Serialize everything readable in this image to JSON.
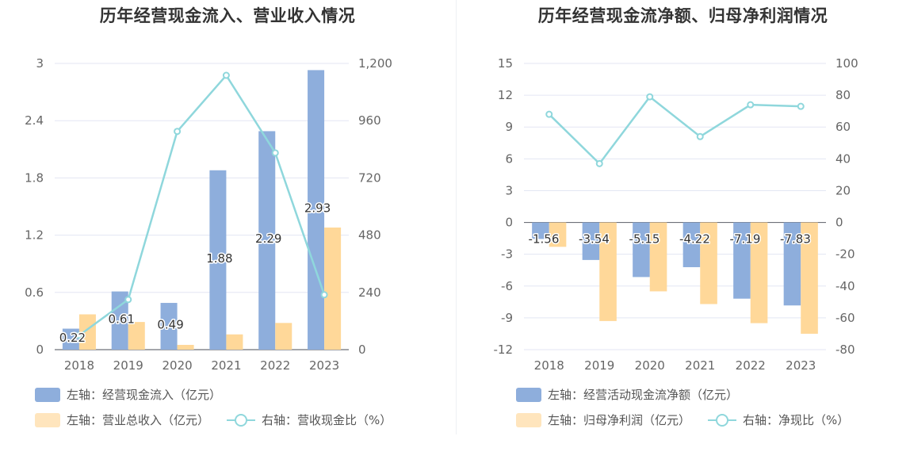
{
  "charts": {
    "left": {
      "title": "历年经营现金流入、营业收入情况",
      "legend": {
        "bar1": "左轴：经营现金流入（亿元）",
        "bar2": "左轴：营业总收入（亿元）",
        "line": "右轴：营收现金比（%）"
      }
    },
    "right": {
      "title": "历年经营现金流净额、归母净利润情况",
      "legend": {
        "bar1": "左轴：经营活动现金流净额（亿元）",
        "bar2": "左轴：归母净利润（亿元）",
        "line": "右轴：净现比（%）"
      }
    }
  },
  "colors": {
    "bar1": "#8eaedc",
    "bar2": "#ffd899",
    "line": "#8fd7dc"
  },
  "chart_data": [
    {
      "type": "bar",
      "title": "历年经营现金流入、营业收入情况",
      "categories": [
        "2018",
        "2019",
        "2020",
        "2021",
        "2022",
        "2023"
      ],
      "y_left": {
        "ticks": [
          "0",
          "0.6",
          "1.2",
          "1.8",
          "2.4",
          "3"
        ],
        "range": [
          0,
          3
        ]
      },
      "y_right": {
        "ticks": [
          "0",
          "240",
          "480",
          "720",
          "960",
          "1,200"
        ],
        "range": [
          0,
          1200
        ]
      },
      "series": [
        {
          "name": "左轴：经营现金流入（亿元）",
          "axis": "left",
          "type": "bar",
          "values": [
            0.22,
            0.61,
            0.49,
            1.88,
            2.29,
            2.93
          ],
          "labels": [
            "0.22",
            "0.61",
            "0.49",
            "1.88",
            "2.29",
            "2.93"
          ]
        },
        {
          "name": "左轴：营业总收入（亿元）",
          "axis": "left",
          "type": "bar",
          "values": [
            0.37,
            0.29,
            0.05,
            0.16,
            0.28,
            1.28
          ]
        },
        {
          "name": "右轴：营收现金比（%）",
          "axis": "right",
          "type": "line",
          "values": [
            60,
            210,
            915,
            1150,
            825,
            230
          ]
        }
      ]
    },
    {
      "type": "bar",
      "title": "历年经营现金流净额、归母净利润情况",
      "categories": [
        "2018",
        "2019",
        "2020",
        "2021",
        "2022",
        "2023"
      ],
      "y_left": {
        "ticks": [
          "-12",
          "-9",
          "-6",
          "-3",
          "0",
          "3",
          "6",
          "9",
          "12",
          "15"
        ],
        "range": [
          -12,
          15
        ]
      },
      "y_right": {
        "ticks": [
          "-80",
          "-60",
          "-40",
          "-20",
          "0",
          "20",
          "40",
          "60",
          "80",
          "100"
        ],
        "range": [
          -80,
          100
        ]
      },
      "series": [
        {
          "name": "左轴：经营活动现金流净额（亿元）",
          "axis": "left",
          "type": "bar",
          "values": [
            -1.56,
            -3.54,
            -5.15,
            -4.22,
            -7.19,
            -7.83
          ],
          "labels": [
            "-1.56",
            "-3.54",
            "-5.15",
            "-4.22",
            "-7.19",
            "-7.83"
          ]
        },
        {
          "name": "左轴：归母净利润（亿元）",
          "axis": "left",
          "type": "bar",
          "values": [
            -2.3,
            -9.3,
            -6.5,
            -7.7,
            -9.5,
            -10.5
          ]
        },
        {
          "name": "右轴：净现比（%）",
          "axis": "right",
          "type": "line",
          "values": [
            68,
            37,
            79,
            54,
            74,
            73
          ]
        }
      ]
    }
  ]
}
